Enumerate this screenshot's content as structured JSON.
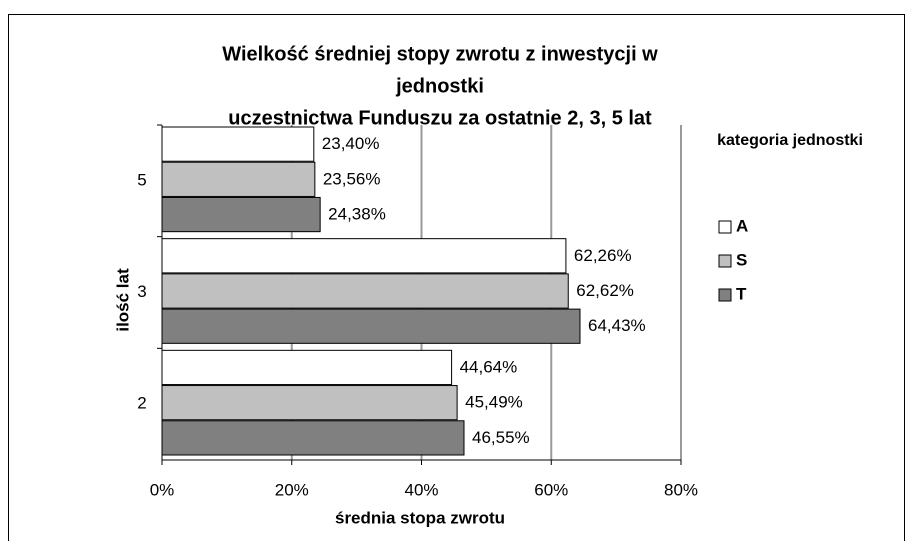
{
  "chart_data": {
    "type": "barh",
    "title": [
      "Wielkość średniej stopy zwrotu z inwestycji w",
      "jednostki",
      "uczestnictwa Funduszu za ostatnie 2, 3, 5 lat"
    ],
    "xlabel": "średnia stopa zwrotu",
    "ylabel": "ilość lat",
    "legend_title": "kategoria jednostki",
    "legend": "right",
    "categories": [
      "2",
      "3",
      "5"
    ],
    "series": [
      {
        "name": "A",
        "color": "#ffffff",
        "values": [
          44.64,
          62.26,
          23.4
        ],
        "value_labels": [
          "44,64%",
          "62,26%",
          "23,40%"
        ]
      },
      {
        "name": "S",
        "color": "#c0c0c0",
        "values": [
          45.49,
          62.62,
          23.56
        ],
        "value_labels": [
          "45,49%",
          "62,62%",
          "23,56%"
        ]
      },
      {
        "name": "T",
        "color": "#808080",
        "values": [
          46.55,
          64.43,
          24.38
        ],
        "value_labels": [
          "46,55%",
          "64,43%",
          "24,38%"
        ]
      }
    ],
    "xlim": [
      0,
      80
    ],
    "xticks": [
      {
        "value": 0,
        "label": "0%"
      },
      {
        "value": 20,
        "label": "20%"
      },
      {
        "value": 40,
        "label": "40%"
      },
      {
        "value": 60,
        "label": "60%"
      },
      {
        "value": 80,
        "label": "80%"
      }
    ],
    "grid": true
  }
}
